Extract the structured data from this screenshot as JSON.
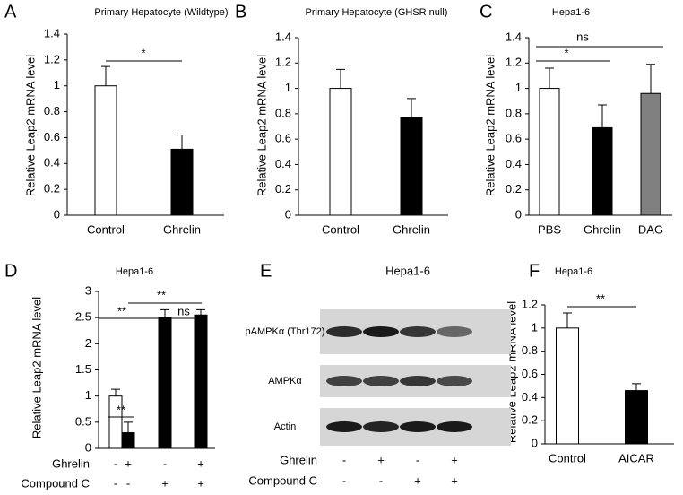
{
  "chart_data": [
    {
      "type": "bar",
      "panel": "A",
      "title": "Primary Hepatocyte (Wildtype)",
      "ylabel": "Relative  Leap2  mRNA level",
      "categories": [
        "Control",
        "Ghrelin"
      ],
      "values": [
        1.0,
        0.51
      ],
      "errors": [
        0.15,
        0.11
      ],
      "colors": [
        "#ffffff",
        "#000000"
      ],
      "ylim": [
        0,
        1.4
      ],
      "yticks": [
        0,
        0.2,
        0.4,
        0.6,
        0.8,
        1,
        1.2,
        1.4
      ],
      "annotations": [
        "*"
      ]
    },
    {
      "type": "bar",
      "panel": "B",
      "title": "Primary Hepatocyte (GHSR null)",
      "ylabel": "Relative  Leap2  mRNA level",
      "categories": [
        "Control",
        "Ghrelin"
      ],
      "values": [
        1.0,
        0.77
      ],
      "errors": [
        0.15,
        0.15
      ],
      "colors": [
        "#ffffff",
        "#000000"
      ],
      "ylim": [
        0,
        1.4
      ],
      "yticks": [
        0,
        0.2,
        0.4,
        0.6,
        0.8,
        1,
        1.2,
        1.4
      ],
      "annotations": []
    },
    {
      "type": "bar",
      "panel": "C",
      "title": "Hepa1-6",
      "ylabel": "Relative  Leap2  mRNA level",
      "categories": [
        "PBS",
        "Ghrelin",
        "DAG"
      ],
      "values": [
        1.0,
        0.69,
        0.96
      ],
      "errors": [
        0.16,
        0.18,
        0.23
      ],
      "colors": [
        "#ffffff",
        "#000000",
        "#808080"
      ],
      "ylim": [
        0,
        1.4
      ],
      "yticks": [
        0,
        0.2,
        0.4,
        0.6,
        0.8,
        1,
        1.2,
        1.4
      ],
      "annotations": [
        "ns",
        "*"
      ]
    },
    {
      "type": "bar",
      "panel": "D",
      "title": "Hepa1-6",
      "ylabel": "Relative  Leap2  mRNA level",
      "categories": [
        null,
        null,
        null,
        null
      ],
      "values": [
        1.0,
        0.3,
        2.5,
        2.55
      ],
      "errors": [
        0.13,
        0.2,
        0.15,
        0.1
      ],
      "colors": [
        "#ffffff",
        "#000000",
        "#000000",
        "#000000"
      ],
      "ylim": [
        0,
        3
      ],
      "yticks": [
        0,
        0.5,
        1,
        1.5,
        2,
        2.5,
        3
      ],
      "annotations": [
        "**",
        "**",
        "**",
        "ns"
      ],
      "conditions": [
        {
          "name": "Ghrelin",
          "values": [
            "-",
            "+",
            "-",
            "+"
          ]
        },
        {
          "name": "Compound C",
          "values": [
            "-",
            "-",
            "+",
            "+"
          ]
        }
      ]
    },
    {
      "type": "bar",
      "panel": "F",
      "title": "Hepa1-6",
      "ylabel": "Relative Leap2 mRNA level",
      "categories": [
        "Control",
        "AICAR"
      ],
      "values": [
        1.0,
        0.46
      ],
      "errors": [
        0.13,
        0.06
      ],
      "colors": [
        "#ffffff",
        "#000000"
      ],
      "ylim": [
        0,
        1.2
      ],
      "yticks": [
        0,
        0.2,
        0.4,
        0.6,
        0.8,
        1,
        1.2
      ],
      "annotations": [
        "**"
      ]
    }
  ],
  "blot": {
    "panel": "E",
    "title": "Hepa1-6",
    "rows": [
      "pAMPKα (Thr172)",
      "AMPKα",
      "Actin"
    ],
    "conditions": [
      {
        "name": "Ghrelin",
        "values": [
          "-",
          "+",
          "-",
          "+"
        ]
      },
      {
        "name": "Compound C",
        "values": [
          "-",
          "-",
          "+",
          "+"
        ]
      }
    ]
  }
}
